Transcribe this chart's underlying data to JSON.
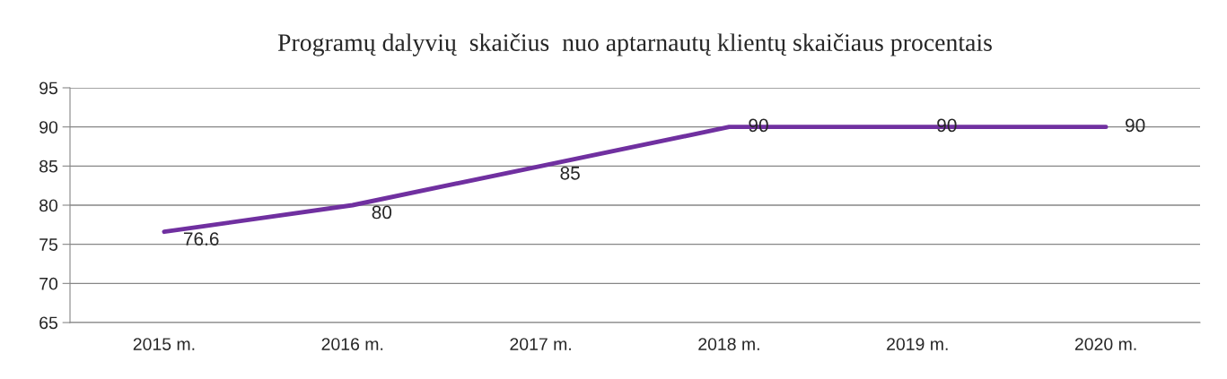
{
  "chart_data": {
    "type": "line",
    "title": "Programų dalyvių  skaičius  nuo aptarnautų klientų skaičiaus procentais",
    "categories": [
      "2015 m.",
      "2016 m.",
      "2017 m.",
      "2018 m.",
      "2019 m.",
      "2020 m."
    ],
    "series": [
      {
        "color": "#7030a0",
        "values": [
          76.6,
          80,
          85,
          90,
          90,
          90
        ]
      }
    ],
    "ylim": [
      65,
      95
    ],
    "yticks": [
      65,
      70,
      75,
      80,
      85,
      90,
      95
    ],
    "grid": "y",
    "data_labels": true,
    "marker": "none",
    "line_style": "solid",
    "legend": false
  }
}
